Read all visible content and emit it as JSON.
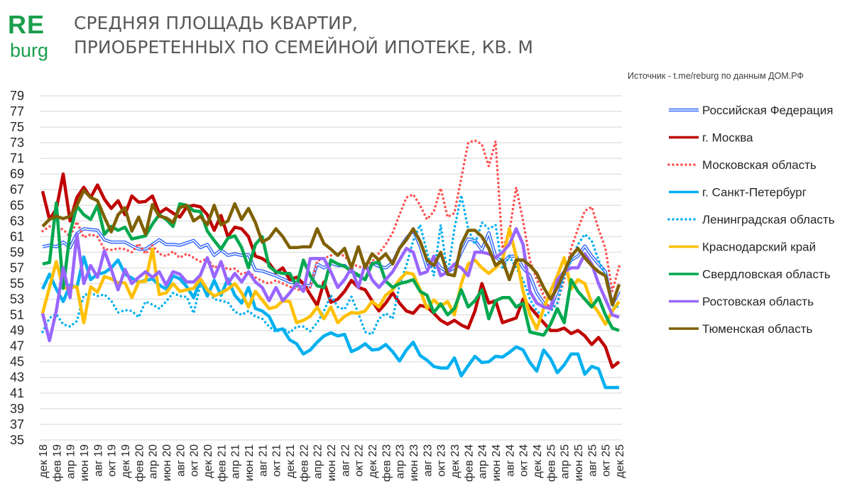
{
  "logo": {
    "top": "RE",
    "bottom": "burg"
  },
  "title": {
    "line1": "СРЕДНЯЯ ПЛОЩАДЬ КВАРТИР,",
    "line2": "ПРИОБРЕТЕННЫХ ПО СЕМЕЙНОЙ ИПОТЕКЕ, КВ. М"
  },
  "source": "Источник - t.me/reburg по данным ДОМ.РФ",
  "chart_data": {
    "type": "line",
    "title": "СРЕДНЯЯ ПЛОЩАДЬ КВАРТИР, ПРИОБРЕТЕННЫХ ПО СЕМЕЙНОЙ ИПОТЕКЕ, КВ. М",
    "ylim": [
      35,
      79
    ],
    "y_ticks": [
      35,
      37,
      39,
      41,
      43,
      45,
      47,
      49,
      51,
      53,
      55,
      57,
      59,
      61,
      63,
      65,
      67,
      69,
      71,
      73,
      75,
      77,
      79
    ],
    "x_range": [
      "дек 18",
      "дек 25"
    ],
    "x_tick_labels": [
      "дек 18",
      "фев 19",
      "апр 19",
      "июн 19",
      "авг 19",
      "окт 19",
      "дек 19",
      "фев 20",
      "апр 20",
      "июн 20",
      "авг 20",
      "окт 20",
      "дек 20",
      "фев 21",
      "апр 21",
      "июн 21",
      "авг 21",
      "окт 21",
      "дек 21",
      "фев 22",
      "апр 22",
      "июн 22",
      "авг 22",
      "окт 22",
      "дек 22",
      "фев 23",
      "апр 23",
      "июн 23",
      "авг 23",
      "окт 23",
      "дек 23",
      "фев 24",
      "апр 24",
      "июн 24",
      "авг 24",
      "окт 24",
      "дек 24",
      "фев 25",
      "апр 25",
      "июн 25",
      "авг 25",
      "окт 25",
      "дек 25"
    ],
    "grid": "horizontal",
    "legend": "right",
    "series": [
      {
        "name": "Российская Федерация",
        "color": "#3366ff",
        "style": "double",
        "values": [
          59.7,
          59.9,
          59.7,
          60.3,
          59.6,
          61.4,
          62.0,
          61.9,
          61.8,
          60.6,
          60.3,
          60.3,
          60.3,
          59.8,
          59.4,
          59.4,
          60.0,
          60.6,
          60.0,
          60.0,
          59.9,
          60.2,
          60.5,
          59.6,
          60.0,
          58.6,
          59.3,
          58.6,
          58.8,
          58.6,
          58.7,
          56.7,
          56.6,
          56.3,
          56.0,
          55.6,
          55.2,
          55.0,
          54.8,
          54.7,
          57.5,
          57.0,
          57.6,
          57.3,
          57.3,
          56.5,
          56.0,
          55.5,
          57.6,
          57.2,
          57.0,
          57.7,
          59.5,
          60.8,
          61.8,
          59.8,
          57.0,
          58.3,
          57.0,
          56.5,
          57.0,
          59.0,
          60.7,
          60.5,
          59.3,
          61.5,
          58.5,
          57.6,
          58.5,
          58.5,
          57.0,
          56.0,
          53.8,
          52.5,
          51.8,
          54.0,
          56.5,
          58.0,
          58.5,
          59.8,
          58.5,
          57.5,
          56.5,
          52.3,
          54.0
        ]
      },
      {
        "name": "г. Москва",
        "color": "#c00000",
        "style": "solid",
        "values": [
          66.8,
          63.2,
          64.5,
          69.0,
          63.0,
          66.0,
          67.3,
          66.0,
          67.6,
          65.8,
          64.6,
          65.6,
          63.8,
          66.2,
          65.4,
          65.5,
          66.2,
          64.0,
          64.6,
          64.0,
          63.5,
          64.8,
          65.0,
          64.8,
          63.8,
          61.8,
          63.7,
          61.0,
          62.2,
          62.0,
          61.0,
          58.5,
          58.2,
          57.6,
          56.4,
          57.0,
          55.5,
          55.8,
          55.0,
          53.6,
          52.2,
          55.2,
          52.6,
          53.0,
          54.0,
          55.4,
          54.5,
          54.2,
          52.8,
          51.5,
          52.5,
          53.8,
          52.5,
          51.5,
          51.2,
          52.2,
          52.0,
          51.2,
          50.3,
          49.8,
          50.3,
          49.7,
          49.3,
          51.5,
          55.0,
          52.5,
          52.8,
          50.0,
          50.3,
          50.6,
          53.0,
          52.0,
          51.0,
          50.0,
          49.0,
          49.0,
          49.3,
          48.6,
          49.0,
          48.3,
          47.2,
          48.1,
          46.9,
          44.3,
          45.0
        ]
      },
      {
        "name": "Московская область",
        "color": "#ff5050",
        "style": "dotted",
        "values": [
          61.7,
          62.3,
          62.3,
          61.9,
          61.0,
          62.9,
          60.9,
          61.3,
          61.0,
          59.4,
          59.3,
          59.5,
          59.4,
          59.0,
          60.1,
          58.8,
          59.9,
          58.8,
          58.5,
          59.1,
          58.3,
          58.8,
          58.3,
          57.8,
          58.2,
          57.0,
          57.5,
          56.8,
          56.9,
          56.2,
          56.5,
          55.8,
          55.3,
          55.0,
          55.4,
          55.0,
          54.6,
          54.3,
          54.0,
          54.5,
          57.9,
          58.2,
          58.6,
          58.9,
          58.5,
          57.5,
          57.2,
          56.9,
          57.8,
          58.9,
          60.0,
          61.5,
          63.8,
          66.0,
          66.4,
          65.0,
          63.2,
          64.2,
          67.2,
          63.5,
          64.0,
          68.5,
          73.0,
          73.3,
          72.8,
          70.0,
          73.2,
          59.5,
          61.5,
          67.3,
          63.0,
          58.0,
          55.5,
          53.5,
          51.5,
          52.5,
          55.5,
          59.5,
          62.0,
          64.3,
          64.8,
          62.0,
          59.5,
          54.0,
          57.2
        ]
      },
      {
        "name": "г. Санкт-Петербург",
        "color": "#00b0f0",
        "style": "solid",
        "values": [
          54.3,
          56.2,
          54.3,
          52.7,
          54.8,
          54.5,
          58.4,
          55.5,
          56.2,
          56.4,
          57.0,
          58.0,
          56.2,
          55.7,
          55.2,
          55.4,
          55.6,
          54.8,
          54.3,
          56.0,
          55.6,
          54.6,
          53.2,
          55.4,
          53.4,
          55.4,
          53.5,
          55.6,
          53.5,
          52.5,
          54.5,
          51.8,
          51.5,
          50.8,
          49.0,
          49.2,
          47.8,
          47.3,
          46.0,
          46.5,
          47.5,
          48.3,
          48.7,
          48.3,
          48.5,
          46.3,
          46.7,
          47.3,
          46.5,
          46.6,
          47.2,
          46.3,
          45.1,
          46.5,
          47.5,
          45.8,
          45.2,
          44.4,
          44.2,
          44.2,
          45.5,
          43.2,
          44.5,
          45.7,
          44.9,
          45.0,
          45.7,
          45.6,
          46.2,
          46.9,
          46.5,
          44.9,
          43.8,
          46.5,
          45.4,
          43.6,
          44.6,
          46.0,
          46.0,
          43.4,
          44.4,
          44.1,
          41.7,
          41.7,
          41.7
        ]
      },
      {
        "name": "Ленинградская область",
        "color": "#00b0f0",
        "style": "dotted",
        "values": [
          48.8,
          50.6,
          51.1,
          49.8,
          49.5,
          50.2,
          53.5,
          53.8,
          53.4,
          53.6,
          52.8,
          51.3,
          51.6,
          51.5,
          50.7,
          52.7,
          52.3,
          51.8,
          52.7,
          53.8,
          53.4,
          53.3,
          51.2,
          54.9,
          54.5,
          53.0,
          52.8,
          52.6,
          51.4,
          51.0,
          51.5,
          50.8,
          50.5,
          49.5,
          48.8,
          49.3,
          48.7,
          49.5,
          49.5,
          48.9,
          50.0,
          51.5,
          53.5,
          52.0,
          51.7,
          53.3,
          51.2,
          48.8,
          48.5,
          50.5,
          51.2,
          50.5,
          54.8,
          57.3,
          60.5,
          62.5,
          59.0,
          56.0,
          62.5,
          56.0,
          62.0,
          66.3,
          62.0,
          60.0,
          62.8,
          62.0,
          62.5,
          56.8,
          58.5,
          57.0,
          55.5,
          53.0,
          51.5,
          50.8,
          51.5,
          52.5,
          56.0,
          58.0,
          60.0,
          61.3,
          60.5,
          58.0,
          56.0,
          52.2,
          52.0
        ]
      },
      {
        "name": "Краснодарский край",
        "color": "#ffc000",
        "style": "solid",
        "values": [
          51.2,
          54.5,
          57.8,
          54.4,
          54.5,
          54.6,
          50.0,
          54.6,
          53.9,
          55.9,
          55.6,
          55.1,
          55.1,
          53.2,
          55.2,
          55.3,
          59.4,
          53.6,
          53.8,
          55.0,
          54.0,
          54.2,
          54.4,
          55.6,
          54.2,
          53.4,
          53.8,
          54.3,
          55.0,
          53.8,
          52.0,
          54.0,
          52.9,
          51.8,
          52.0,
          52.8,
          52.7,
          50.0,
          50.3,
          50.8,
          52.0,
          50.5,
          52.0,
          50.0,
          50.8,
          51.3,
          51.2,
          51.5,
          52.7,
          52.0,
          53.5,
          54.2,
          55.5,
          56.4,
          56.2,
          54.2,
          51.8,
          52.9,
          52.1,
          52.7,
          51.0,
          55.0,
          57.5,
          58.0,
          57.0,
          56.3,
          57.0,
          58.0,
          62.0,
          58.5,
          54.0,
          51.0,
          49.2,
          51.8,
          54.0,
          56.0,
          58.3,
          54.3,
          55.5,
          55.0,
          52.5,
          51.3,
          49.8,
          51.5,
          52.7
        ]
      },
      {
        "name": "Свердловская область",
        "color": "#00a84f",
        "style": "solid",
        "values": [
          57.5,
          57.7,
          65.3,
          54.4,
          61.5,
          64.9,
          63.8,
          63.2,
          65.0,
          61.3,
          62.3,
          61.8,
          62.2,
          60.7,
          60.9,
          61.1,
          62.6,
          63.8,
          63.2,
          62.3,
          65.2,
          65.0,
          64.3,
          64.2,
          61.7,
          60.5,
          59.4,
          60.8,
          61.1,
          59.6,
          57.0,
          60.0,
          61.0,
          57.2,
          56.5,
          56.3,
          56.3,
          54.7,
          58.0,
          56.0,
          54.7,
          54.5,
          58.0,
          57.5,
          57.2,
          56.6,
          56.1,
          55.5,
          57.5,
          57.8,
          55.3,
          54.5,
          55.0,
          55.2,
          55.5,
          54.0,
          53.5,
          51.3,
          52.4,
          51.0,
          51.8,
          54.2,
          52.0,
          52.8,
          54.2,
          50.5,
          52.8,
          53.2,
          53.2,
          52.0,
          52.5,
          48.8,
          48.6,
          48.4,
          49.8,
          51.8,
          50.0,
          55.5,
          54.0,
          53.0,
          52.0,
          53.2,
          51.0,
          49.3,
          49.0
        ]
      },
      {
        "name": "Ростовская область",
        "color": "#9966ff",
        "style": "solid",
        "values": [
          51.2,
          47.7,
          51.5,
          57.0,
          53.2,
          61.3,
          55.0,
          57.3,
          55.8,
          59.2,
          56.8,
          54.2,
          56.8,
          55.0,
          55.8,
          56.5,
          55.8,
          56.5,
          54.8,
          56.5,
          56.2,
          55.2,
          55.2,
          56.1,
          58.3,
          55.8,
          57.8,
          55.0,
          56.3,
          55.2,
          56.5,
          55.2,
          54.5,
          52.8,
          54.5,
          52.8,
          53.8,
          55.0,
          54.0,
          58.2,
          58.2,
          58.2,
          56.5,
          54.5,
          55.5,
          57.0,
          54.5,
          57.5,
          55.5,
          54.5,
          55.5,
          56.5,
          58.0,
          59.5,
          59.0,
          56.2,
          56.5,
          58.5,
          56.0,
          56.5,
          57.5,
          57.0,
          56.0,
          59.0,
          59.0,
          58.8,
          58.3,
          59.0,
          60.0,
          62.0,
          60.0,
          54.0,
          52.5,
          52.0,
          51.8,
          55.5,
          56.5,
          57.0,
          57.0,
          58.8,
          57.5,
          55.0,
          53.0,
          51.0,
          50.7
        ]
      },
      {
        "name": "Тюменская область",
        "color": "#7f6000",
        "style": "solid",
        "values": [
          62.3,
          63.2,
          63.6,
          63.3,
          63.6,
          65.0,
          66.9,
          66.0,
          65.6,
          63.5,
          61.6,
          63.8,
          64.7,
          61.7,
          63.5,
          61.3,
          65.1,
          63.6,
          63.4,
          62.8,
          64.7,
          65.0,
          63.0,
          63.6,
          62.5,
          65.0,
          62.5,
          63.0,
          65.2,
          63.2,
          64.6,
          62.8,
          60.3,
          60.8,
          62.0,
          61.0,
          59.6,
          59.6,
          59.7,
          59.7,
          62.0,
          60.1,
          59.4,
          58.6,
          59.5,
          57.0,
          59.7,
          57.0,
          58.8,
          58.0,
          58.8,
          57.5,
          59.5,
          60.6,
          62.0,
          60.4,
          58.0,
          57.3,
          59.0,
          56.2,
          56.0,
          60.0,
          61.8,
          61.8,
          61.0,
          59.5,
          57.3,
          58.0,
          55.5,
          58.0,
          58.0,
          57.3,
          56.3,
          54.5,
          53.0,
          54.5,
          56.5,
          58.5,
          59.5,
          58.3,
          57.3,
          56.5,
          56.0,
          52.3,
          54.9
        ]
      }
    ]
  }
}
